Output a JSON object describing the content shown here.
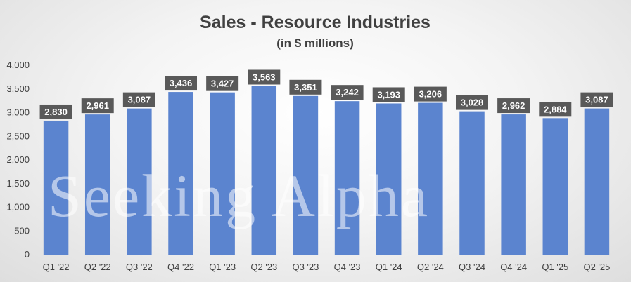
{
  "chart_data": {
    "type": "bar",
    "title": "Sales - Resource Industries",
    "subtitle": "(in $ millions)",
    "categories": [
      "Q1 '22",
      "Q2 '22",
      "Q3 '22",
      "Q4 '22",
      "Q1 '23",
      "Q2 '23",
      "Q3 '23",
      "Q4 '23",
      "Q1 '24",
      "Q2 '24",
      "Q3 '24",
      "Q4 '24",
      "Q1 '25",
      "Q2 '25"
    ],
    "values": [
      2830,
      2961,
      3087,
      3436,
      3427,
      3563,
      3351,
      3242,
      3193,
      3206,
      3028,
      2962,
      2884,
      3087
    ],
    "data_labels": [
      "2,830",
      "2,961",
      "3,087",
      "3,436",
      "3,427",
      "3,563",
      "3,351",
      "3,242",
      "3,193",
      "3,206",
      "3,028",
      "2,962",
      "2,884",
      "3,087"
    ],
    "yticks": [
      0,
      500,
      1000,
      1500,
      2000,
      2500,
      3000,
      3500,
      4000
    ],
    "ytick_labels": [
      "0",
      "500",
      "1,000",
      "1,500",
      "2,000",
      "2,500",
      "3,000",
      "3,500",
      "4,000"
    ],
    "ylim": [
      0,
      4000
    ],
    "xlabel": "",
    "ylabel": "",
    "grid": false,
    "legend": "none",
    "bar_color": "#5b84cf",
    "label_bg_color": "#595959",
    "label_text_color": "#ffffff",
    "text_color": "#404040",
    "watermark": "Seeking Alpha"
  }
}
